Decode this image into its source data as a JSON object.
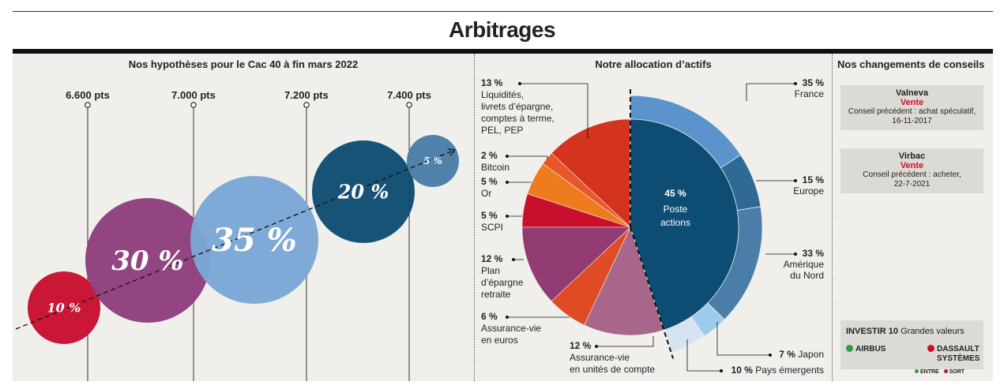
{
  "title": "Arbitrages",
  "panel1": {
    "title": "Nos hypothèses pour le Cac 40 à fin mars 2022"
  },
  "panel2": {
    "title": "Notre allocation d’actifs"
  },
  "panel3": {
    "title": "Nos changements de conseils",
    "cards": [
      {
        "name": "Valneva",
        "action": "Vente",
        "previous": "Conseil précédent : achat spéculatif,",
        "date": "16-11-2017"
      },
      {
        "name": "Virbac",
        "action": "Vente",
        "previous": "Conseil précédent : acheter,",
        "date": "22-7-2021"
      }
    ],
    "investir": {
      "title_bold": "INVESTIR 10",
      "title_rest": "Grandes valeurs",
      "in_label": "AIRBUS",
      "out_label_1": "DASSAULT",
      "out_label_2": "SYSTÈMES",
      "legend_in": "ENTRE",
      "legend_out": "SORT",
      "in_color": "#2e9e3e",
      "out_color": "#c8102e"
    }
  },
  "chart_data": [
    {
      "type": "scatter",
      "title": "Nos hypothèses pour le Cac 40 à fin mars 2022",
      "x_ticks": [
        {
          "label": "6.600 pts",
          "value": 6600
        },
        {
          "label": "7.000 pts",
          "value": 7000
        },
        {
          "label": "7.200 pts",
          "value": 7200
        },
        {
          "label": "7.400 pts",
          "value": 7400
        }
      ],
      "points": [
        {
          "label": "10 %",
          "probability": 10,
          "color": "#c8102e"
        },
        {
          "label": "30 %",
          "probability": 30,
          "color": "#8e3f7d"
        },
        {
          "label": "35 %",
          "probability": 35,
          "color": "#7ba7d6"
        },
        {
          "label": "20 %",
          "probability": 20,
          "color": "#0e4d73"
        },
        {
          "label": "5 %",
          "probability": 5,
          "color": "#4a7ea8"
        }
      ]
    },
    {
      "type": "pie",
      "title": "Notre allocation d’actifs",
      "slices": [
        {
          "label_pct": "13 %",
          "label_lines": [
            "Liquidités,",
            "livrets d’épargne,",
            "comptes à terme,",
            "PEL, PEP"
          ],
          "value": 13,
          "color": "#d4331f"
        },
        {
          "label_pct": "2 %",
          "label_lines": [
            "Bitcoin"
          ],
          "value": 2,
          "color": "#e8562a"
        },
        {
          "label_pct": "5 %",
          "label_lines": [
            "Or"
          ],
          "value": 5,
          "color": "#ee7c1e"
        },
        {
          "label_pct": "5 %",
          "label_lines": [
            "SCPI"
          ],
          "value": 5,
          "color": "#c8102e"
        },
        {
          "label_pct": "12 %",
          "label_lines": [
            "Plan",
            "d’épargne",
            "retraite"
          ],
          "value": 12,
          "color": "#913b72"
        },
        {
          "label_pct": "6 %",
          "label_lines": [
            "Assurance-vie",
            "en euros"
          ],
          "value": 6,
          "color": "#e04a24"
        },
        {
          "label_pct": "12 %",
          "label_lines": [
            "Assurance-vie",
            "en unités de compte"
          ],
          "value": 12,
          "color": "#a8678a"
        },
        {
          "label_pct": "45 %",
          "label_lines": [
            "Poste",
            "actions"
          ],
          "value": 45,
          "color": "#0e4d73"
        }
      ],
      "breakdown_of_actions": [
        {
          "label_pct": "35 %",
          "label_lines": [
            "France"
          ],
          "value": 35,
          "color": "#5b93cc"
        },
        {
          "label_pct": "15 %",
          "label_lines": [
            "Europe"
          ],
          "value": 15,
          "color": "#2f6a97"
        },
        {
          "label_pct": "33 %",
          "label_lines": [
            "Amérique",
            "du Nord"
          ],
          "value": 33,
          "color": "#4a7ea8"
        },
        {
          "label_pct": "7 %",
          "label_lines": [
            "Japon"
          ],
          "value": 7,
          "color": "#9ccbeb"
        },
        {
          "label_pct": "10 %",
          "label_lines": [
            "Pays émergents"
          ],
          "value": 10,
          "color": "#d6e4f2"
        }
      ]
    }
  ]
}
